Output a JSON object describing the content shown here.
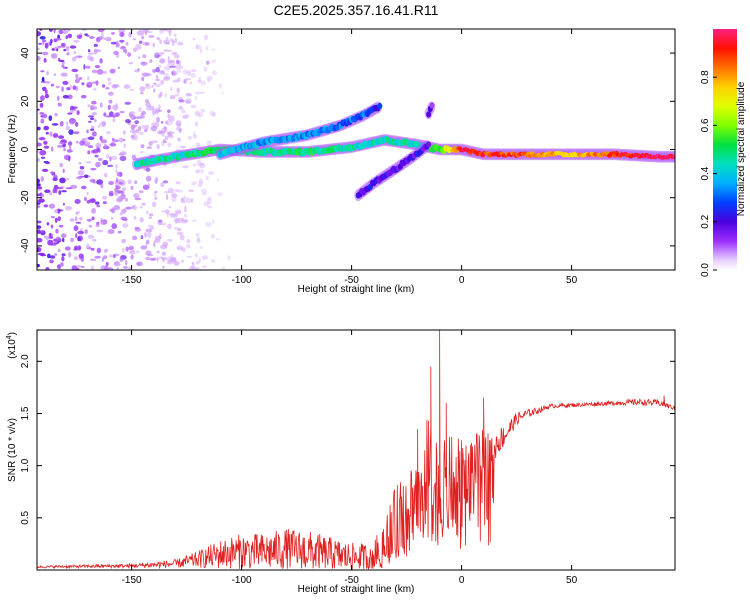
{
  "page_title": "C2E5.2025.357.16.41.R11",
  "chart_data": [
    {
      "type": "heatmap",
      "name": "spectrogram",
      "xlabel": "Height of straight line (km)",
      "ylabel": "Frequency (Hz)",
      "xlim": [
        -193,
        97
      ],
      "ylim": [
        -50,
        50
      ],
      "xticks": [
        -150,
        -100,
        -50,
        0,
        50
      ],
      "yticks": [
        -40,
        -20,
        0,
        20,
        40
      ],
      "colorbar": {
        "label": "Normalized spectral amplitude",
        "range": [
          0,
          1
        ],
        "ticks": [
          0.0,
          0.2,
          0.4,
          0.6,
          0.8
        ]
      },
      "scattered_noise_region_x": [
        -193,
        -130
      ],
      "tracks": [
        {
          "name": "main-track",
          "x": [
            -148,
            -130,
            -110,
            -90,
            -70,
            -50,
            -35,
            -20,
            -10,
            0,
            10,
            30,
            50,
            70,
            90,
            97
          ],
          "y": [
            -6,
            -3,
            0,
            -1,
            -1,
            1,
            4,
            2,
            0,
            0,
            -2,
            -2,
            -2,
            -2,
            -3,
            -3
          ],
          "amplitude": [
            0.45,
            0.45,
            0.5,
            0.45,
            0.5,
            0.45,
            0.45,
            0.45,
            0.55,
            0.95,
            0.9,
            0.85,
            0.75,
            0.9,
            1.0,
            1.0
          ]
        },
        {
          "name": "upper-branch",
          "x": [
            -110,
            -90,
            -70,
            -55,
            -45,
            -37
          ],
          "y": [
            -2,
            3,
            6,
            10,
            14,
            18
          ],
          "amplitude": [
            0.4,
            0.35,
            0.35,
            0.3,
            0.3,
            0.25
          ]
        },
        {
          "name": "lower-branch",
          "x": [
            -47,
            -40,
            -30,
            -22,
            -15
          ],
          "y": [
            -19,
            -14,
            -8,
            -3,
            2
          ],
          "amplitude": [
            0.2,
            0.2,
            0.2,
            0.2,
            0.2
          ]
        },
        {
          "name": "short-streak",
          "x": [
            -15,
            -13
          ],
          "y": [
            15,
            19
          ],
          "amplitude": [
            0.15,
            0.15
          ]
        }
      ]
    },
    {
      "type": "line",
      "name": "snr",
      "xlabel": "Height of straight line (km)",
      "ylabel": "SNR (10 * v/v)",
      "ylabel_multiplier": "(x10",
      "ylabel_multiplier_exp": "4",
      "ylabel_multiplier_close": ")",
      "xlim": [
        -193,
        97
      ],
      "ylim": [
        0,
        2.3
      ],
      "xticks": [
        -150,
        -100,
        -50,
        0,
        50
      ],
      "yticks": [
        0.5,
        1.0,
        1.5,
        2.0
      ],
      "color": "#e02020",
      "envelope": {
        "x": [
          -193,
          -150,
          -130,
          -120,
          -110,
          -100,
          -90,
          -80,
          -70,
          -60,
          -50,
          -40,
          -35,
          -30,
          -25,
          -20,
          -15,
          -10,
          -5,
          0,
          5,
          10,
          15,
          20,
          25,
          30,
          35,
          40,
          50,
          60,
          70,
          80,
          90,
          97
        ],
        "y": [
          0.03,
          0.04,
          0.06,
          0.1,
          0.15,
          0.18,
          0.17,
          0.2,
          0.18,
          0.15,
          0.12,
          0.12,
          0.28,
          0.45,
          0.6,
          0.72,
          0.95,
          0.7,
          0.85,
          0.9,
          1.0,
          1.1,
          1.2,
          1.3,
          1.45,
          1.5,
          1.53,
          1.57,
          1.58,
          1.59,
          1.6,
          1.61,
          1.6,
          1.55
        ],
        "noise": [
          0.01,
          0.02,
          0.04,
          0.08,
          0.14,
          0.17,
          0.18,
          0.2,
          0.2,
          0.17,
          0.14,
          0.14,
          0.25,
          0.35,
          0.4,
          0.5,
          0.55,
          0.5,
          0.45,
          0.35,
          0.3,
          0.25,
          0.15,
          0.1,
          0.06,
          0.04,
          0.03,
          0.02,
          0.02,
          0.02,
          0.02,
          0.03,
          0.03,
          0.02
        ]
      },
      "spikes": [
        {
          "x": -10,
          "y": 2.35
        },
        {
          "x": -14,
          "y": 1.95
        },
        {
          "x": -20,
          "y": 1.35
        },
        {
          "x": -7,
          "y": 1.6
        },
        {
          "x": 10,
          "y": 1.65
        },
        {
          "x": 92,
          "y": 1.67
        }
      ]
    }
  ]
}
